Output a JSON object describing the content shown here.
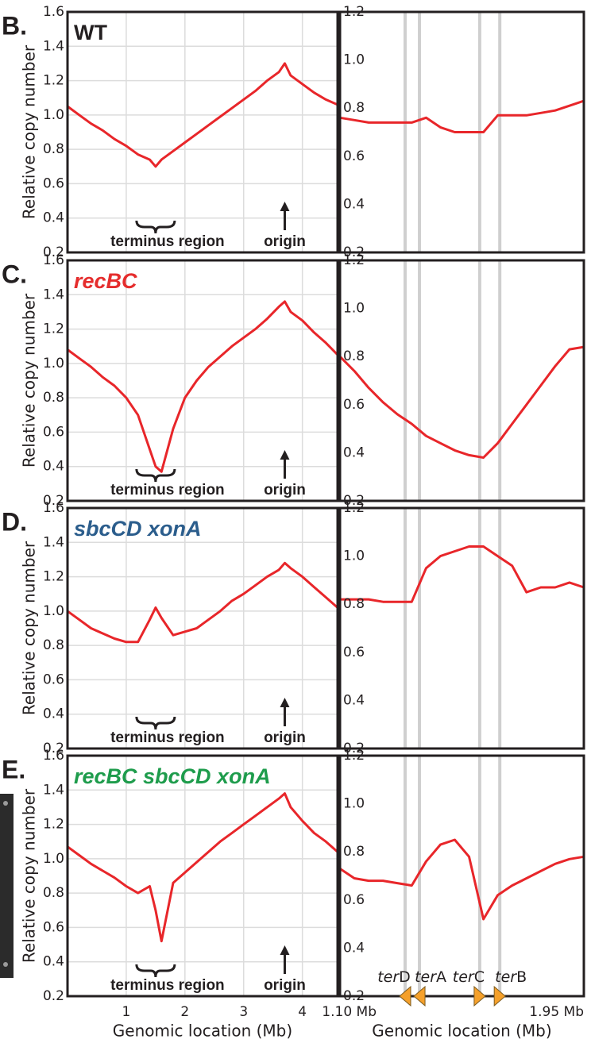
{
  "chart_data": [
    {
      "type": "line",
      "label": "B.",
      "title": "WT",
      "title_color": "#231f20",
      "title_style": "normal",
      "ylabel": "Relative copy number",
      "xlim": [
        0,
        4.6
      ],
      "xticks": [
        1,
        2,
        3,
        4
      ],
      "ylim": [
        0.2,
        1.6
      ],
      "yticks": [
        0.2,
        0.4,
        0.6,
        0.8,
        {
          "value": 1,
          "label": "1.0"
        },
        1.2,
        1.4,
        1.6
      ],
      "grid": true,
      "color": "#e8262a",
      "annotations": [
        {
          "text": "terminus region",
          "x": 1.5,
          "kind": "brace"
        },
        {
          "text": "origin",
          "x": 3.7,
          "kind": "arrow"
        }
      ],
      "x": [
        0,
        0.2,
        0.4,
        0.6,
        0.8,
        1.0,
        1.2,
        1.4,
        1.5,
        1.6,
        1.8,
        2.0,
        2.2,
        2.4,
        2.6,
        2.8,
        3.0,
        3.2,
        3.4,
        3.6,
        3.7,
        3.8,
        4.0,
        4.2,
        4.4,
        4.6
      ],
      "values": [
        1.05,
        1.0,
        0.95,
        0.91,
        0.86,
        0.82,
        0.77,
        0.74,
        0.7,
        0.74,
        0.79,
        0.84,
        0.89,
        0.94,
        0.99,
        1.04,
        1.09,
        1.14,
        1.2,
        1.25,
        1.3,
        1.23,
        1.18,
        1.13,
        1.09,
        1.06
      ]
    },
    {
      "type": "line",
      "xlim": [
        1.1,
        1.95
      ],
      "ylim": [
        0.2,
        1.2
      ],
      "yticks": [
        0.2,
        0.4,
        0.6,
        0.8,
        {
          "value": 1,
          "label": "1.0"
        },
        1.2
      ],
      "grid": false,
      "color": "#e8262a",
      "ter_sites": [
        1.327,
        1.377,
        1.587,
        1.657
      ],
      "x": [
        1.1,
        1.15,
        1.2,
        1.25,
        1.3,
        1.35,
        1.4,
        1.45,
        1.5,
        1.55,
        1.6,
        1.65,
        1.7,
        1.75,
        1.8,
        1.85,
        1.9,
        1.95
      ],
      "values": [
        0.76,
        0.75,
        0.74,
        0.74,
        0.74,
        0.74,
        0.76,
        0.72,
        0.7,
        0.7,
        0.7,
        0.77,
        0.77,
        0.77,
        0.78,
        0.79,
        0.81,
        0.83
      ]
    },
    {
      "type": "line",
      "label": "C.",
      "title": "recBC",
      "title_color": "#e52d2d",
      "title_style": "italic",
      "ylabel": "Relative copy number",
      "xlim": [
        0,
        4.6
      ],
      "xticks": [
        1,
        2,
        3,
        4
      ],
      "ylim": [
        0.2,
        1.6
      ],
      "yticks": [
        0.2,
        0.4,
        0.6,
        0.8,
        {
          "value": 1,
          "label": "1.0"
        },
        1.2,
        1.4,
        1.6
      ],
      "grid": true,
      "color": "#e8262a",
      "annotations": [
        {
          "text": "terminus region",
          "x": 1.5,
          "kind": "brace"
        },
        {
          "text": "origin",
          "x": 3.7,
          "kind": "arrow"
        }
      ],
      "x": [
        0,
        0.2,
        0.4,
        0.6,
        0.8,
        1.0,
        1.2,
        1.4,
        1.5,
        1.6,
        1.8,
        2.0,
        2.2,
        2.4,
        2.6,
        2.8,
        3.0,
        3.2,
        3.4,
        3.6,
        3.7,
        3.8,
        4.0,
        4.2,
        4.4,
        4.6
      ],
      "values": [
        1.08,
        1.03,
        0.98,
        0.92,
        0.87,
        0.8,
        0.7,
        0.5,
        0.4,
        0.37,
        0.62,
        0.8,
        0.9,
        0.98,
        1.04,
        1.1,
        1.15,
        1.2,
        1.26,
        1.33,
        1.36,
        1.3,
        1.25,
        1.18,
        1.12,
        1.05
      ]
    },
    {
      "type": "line",
      "xlim": [
        1.1,
        1.95
      ],
      "ylim": [
        0.2,
        1.2
      ],
      "yticks": [
        0.2,
        0.4,
        0.6,
        0.8,
        {
          "value": 1,
          "label": "1.0"
        },
        1.2
      ],
      "grid": false,
      "color": "#e8262a",
      "ter_sites": [
        1.327,
        1.377,
        1.587,
        1.657
      ],
      "x": [
        1.1,
        1.15,
        1.2,
        1.25,
        1.3,
        1.35,
        1.4,
        1.45,
        1.5,
        1.55,
        1.6,
        1.65,
        1.7,
        1.75,
        1.8,
        1.85,
        1.9,
        1.95
      ],
      "values": [
        0.8,
        0.74,
        0.67,
        0.61,
        0.56,
        0.52,
        0.47,
        0.44,
        0.41,
        0.39,
        0.38,
        0.44,
        0.52,
        0.6,
        0.68,
        0.76,
        0.83,
        0.84
      ]
    },
    {
      "type": "line",
      "label": "D.",
      "title": "sbcCD xonA",
      "title_color": "#2b5d8c",
      "title_style": "italic",
      "ylabel": "Relative copy number",
      "xlim": [
        0,
        4.6
      ],
      "xticks": [
        1,
        2,
        3,
        4
      ],
      "ylim": [
        0.2,
        1.6
      ],
      "yticks": [
        0.2,
        0.4,
        0.6,
        0.8,
        {
          "value": 1,
          "label": "1.0"
        },
        1.2,
        1.4,
        1.6
      ],
      "grid": true,
      "color": "#e8262a",
      "annotations": [
        {
          "text": "terminus region",
          "x": 1.5,
          "kind": "brace"
        },
        {
          "text": "origin",
          "x": 3.7,
          "kind": "arrow"
        }
      ],
      "x": [
        0,
        0.2,
        0.4,
        0.6,
        0.8,
        1.0,
        1.2,
        1.4,
        1.5,
        1.6,
        1.8,
        2.0,
        2.2,
        2.4,
        2.6,
        2.8,
        3.0,
        3.2,
        3.4,
        3.6,
        3.7,
        3.8,
        4.0,
        4.2,
        4.4,
        4.6
      ],
      "values": [
        1.0,
        0.95,
        0.9,
        0.87,
        0.84,
        0.82,
        0.82,
        0.95,
        1.02,
        0.96,
        0.86,
        0.88,
        0.9,
        0.95,
        1.0,
        1.06,
        1.1,
        1.15,
        1.2,
        1.24,
        1.28,
        1.25,
        1.2,
        1.14,
        1.08,
        1.02
      ]
    },
    {
      "type": "line",
      "xlim": [
        1.1,
        1.95
      ],
      "ylim": [
        0.2,
        1.2
      ],
      "yticks": [
        0.2,
        0.4,
        0.6,
        0.8,
        {
          "value": 1,
          "label": "1.0"
        },
        1.2
      ],
      "grid": false,
      "color": "#e8262a",
      "ter_sites": [
        1.327,
        1.377,
        1.587,
        1.657
      ],
      "x": [
        1.1,
        1.15,
        1.2,
        1.25,
        1.3,
        1.35,
        1.4,
        1.45,
        1.5,
        1.55,
        1.6,
        1.65,
        1.7,
        1.75,
        1.8,
        1.85,
        1.9,
        1.95
      ],
      "values": [
        0.82,
        0.82,
        0.82,
        0.81,
        0.81,
        0.81,
        0.95,
        1.0,
        1.02,
        1.04,
        1.04,
        1.0,
        0.96,
        0.85,
        0.87,
        0.87,
        0.89,
        0.87
      ]
    },
    {
      "type": "line",
      "label": "E.",
      "title": "recBC sbcCD xonA",
      "title_color": "#1e9c4c",
      "title_style": "italic",
      "ylabel": "Relative copy number",
      "xlabel": "Genomic location (Mb)",
      "tick_labels": true,
      "xlim": [
        0,
        4.6
      ],
      "xticks": [
        1,
        2,
        3,
        4
      ],
      "ylim": [
        0.2,
        1.6
      ],
      "yticks": [
        0.2,
        0.4,
        0.6,
        0.8,
        {
          "value": 1,
          "label": "1.0"
        },
        1.2,
        1.4,
        1.6
      ],
      "grid": true,
      "color": "#e8262a",
      "annotations": [
        {
          "text": "terminus region",
          "x": 1.5,
          "kind": "brace"
        },
        {
          "text": "origin",
          "x": 3.7,
          "kind": "arrow"
        }
      ],
      "x": [
        0,
        0.2,
        0.4,
        0.6,
        0.8,
        1.0,
        1.2,
        1.4,
        1.5,
        1.6,
        1.8,
        2.0,
        2.2,
        2.4,
        2.6,
        2.8,
        3.0,
        3.2,
        3.4,
        3.6,
        3.7,
        3.8,
        4.0,
        4.2,
        4.4,
        4.6
      ],
      "values": [
        1.07,
        1.02,
        0.97,
        0.93,
        0.89,
        0.84,
        0.8,
        0.84,
        0.7,
        0.52,
        0.86,
        0.92,
        0.98,
        1.04,
        1.1,
        1.15,
        1.2,
        1.25,
        1.3,
        1.35,
        1.38,
        1.3,
        1.22,
        1.15,
        1.1,
        1.04
      ]
    },
    {
      "type": "line",
      "xlabel": "Genomic location (Mb)",
      "tick_labels": true,
      "xlim": [
        1.1,
        1.95
      ],
      "xticks": [
        {
          "value": 1.1,
          "label": "1.10 Mb"
        },
        {
          "value": 1.95,
          "label": "1.95 Mb"
        }
      ],
      "ylim": [
        0.2,
        1.2
      ],
      "yticks": [
        0.2,
        0.4,
        0.6,
        0.8,
        {
          "value": 1,
          "label": "1.0"
        },
        1.2
      ],
      "grid": false,
      "color": "#e8262a",
      "ter_sites": [
        1.327,
        1.377,
        1.587,
        1.657
      ],
      "site_prefix": "ter",
      "site_names": [
        "D",
        "A",
        "C",
        "B"
      ],
      "site_directions": [
        "left",
        "left",
        "right",
        "right"
      ],
      "site_color": "#f5a02a",
      "x": [
        1.1,
        1.15,
        1.2,
        1.25,
        1.3,
        1.35,
        1.4,
        1.45,
        1.5,
        1.55,
        1.6,
        1.65,
        1.7,
        1.75,
        1.8,
        1.85,
        1.9,
        1.95
      ],
      "values": [
        0.73,
        0.69,
        0.68,
        0.68,
        0.67,
        0.66,
        0.76,
        0.83,
        0.85,
        0.78,
        0.52,
        0.62,
        0.66,
        0.69,
        0.72,
        0.75,
        0.77,
        0.78
      ]
    }
  ]
}
